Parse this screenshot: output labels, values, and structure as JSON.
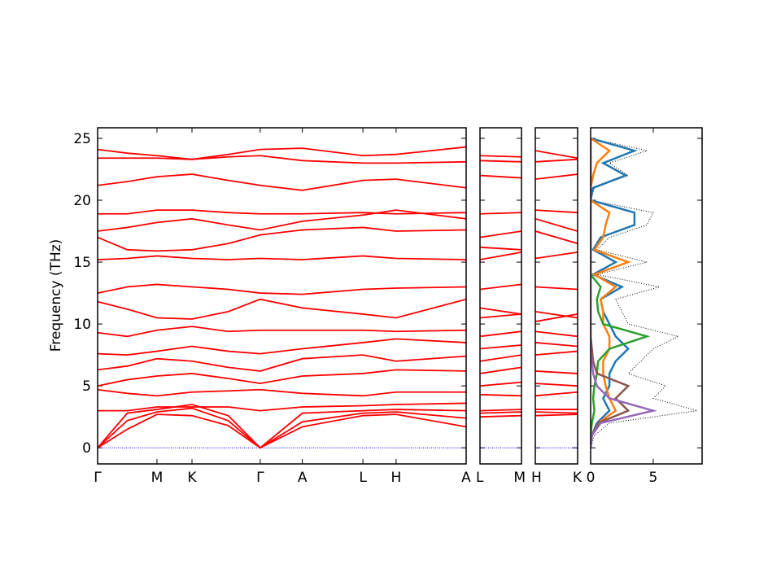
{
  "chart_data": [
    {
      "type": "line",
      "ylabel": "Frequency (THz)",
      "color": "#ff0000",
      "x": [
        0,
        0.5,
        1,
        1.59,
        2.2,
        2.74,
        3.45,
        4.47,
        5.03,
        6.21
      ],
      "xlim": [
        0,
        6.21
      ],
      "xticks": [
        {
          "value": 0,
          "label": "Γ"
        },
        {
          "value": 1,
          "label": "M"
        },
        {
          "value": 1.59,
          "label": "K"
        },
        {
          "value": 2.74,
          "label": "Γ"
        },
        {
          "value": 3.45,
          "label": "A"
        },
        {
          "value": 4.47,
          "label": "L"
        },
        {
          "value": 5.03,
          "label": "H"
        },
        {
          "value": 6.21,
          "label": "A"
        }
      ],
      "ylim": [
        -1.3,
        25.85
      ],
      "yticks": [
        0,
        5,
        10,
        15,
        20,
        25
      ],
      "hline": {
        "value": 0,
        "color": "#0000ff"
      },
      "series": [
        {
          "values": [
            0,
            1.5,
            2.7,
            2.6,
            1.8,
            0,
            1.7,
            2.6,
            2.7,
            1.7
          ]
        },
        {
          "values": [
            0,
            2.2,
            2.9,
            3.2,
            2.2,
            0,
            2.1,
            2.8,
            2.9,
            2.4
          ]
        },
        {
          "values": [
            0,
            2.8,
            3.1,
            3.5,
            2.6,
            0,
            2.8,
            3.0,
            3.1,
            3.0
          ]
        },
        {
          "values": [
            3.0,
            3.0,
            3.3,
            3.3,
            3.3,
            3.0,
            3.3,
            3.4,
            3.5,
            3.6
          ]
        },
        {
          "values": [
            4.7,
            4.4,
            4.2,
            4.5,
            4.6,
            4.7,
            4.4,
            4.2,
            4.5,
            4.5
          ]
        },
        {
          "values": [
            5.0,
            5.5,
            5.8,
            6.0,
            5.6,
            5.2,
            5.8,
            6.0,
            6.3,
            6.2
          ]
        },
        {
          "values": [
            6.3,
            6.6,
            7.2,
            7.0,
            6.5,
            6.2,
            7.2,
            7.5,
            7.0,
            7.4
          ]
        },
        {
          "values": [
            7.6,
            7.5,
            7.8,
            8.2,
            7.8,
            7.6,
            8.0,
            8.5,
            8.8,
            8.5
          ]
        },
        {
          "values": [
            9.3,
            9.0,
            9.5,
            9.8,
            9.4,
            9.5,
            9.5,
            9.5,
            9.4,
            9.5
          ]
        },
        {
          "values": [
            11.8,
            11.2,
            10.5,
            10.4,
            11.0,
            12.0,
            11.3,
            10.8,
            10.5,
            12.0
          ]
        },
        {
          "values": [
            12.5,
            13.0,
            13.2,
            13.0,
            12.8,
            12.5,
            12.4,
            12.8,
            12.9,
            13.0
          ]
        },
        {
          "values": [
            15.2,
            15.3,
            15.5,
            15.3,
            15.2,
            15.3,
            15.2,
            15.5,
            15.3,
            15.2
          ]
        },
        {
          "values": [
            17.0,
            16.0,
            15.9,
            16.0,
            16.5,
            17.2,
            17.6,
            17.8,
            17.5,
            17.6
          ]
        },
        {
          "values": [
            17.5,
            17.8,
            18.2,
            18.5,
            18.0,
            17.6,
            18.3,
            18.8,
            19.2,
            18.5
          ]
        },
        {
          "values": [
            18.9,
            18.9,
            19.2,
            19.2,
            19.0,
            18.9,
            18.9,
            19.0,
            18.9,
            19.0
          ]
        },
        {
          "values": [
            21.2,
            21.5,
            21.9,
            22.1,
            21.6,
            21.2,
            20.8,
            21.6,
            21.7,
            21.0
          ]
        },
        {
          "values": [
            23.4,
            23.4,
            23.4,
            23.3,
            23.5,
            23.6,
            23.2,
            23.0,
            23.0,
            23.1
          ]
        },
        {
          "values": [
            24.1,
            23.8,
            23.6,
            23.3,
            23.7,
            24.1,
            24.2,
            23.6,
            23.7,
            24.3
          ]
        }
      ]
    },
    {
      "type": "line",
      "color": "#ff0000",
      "x": [
        0,
        1
      ],
      "xlim": [
        0,
        1
      ],
      "xticks": [
        {
          "value": 0,
          "label": "L"
        },
        {
          "value": 1,
          "label": "M"
        }
      ],
      "ylim": [
        -1.3,
        25.85
      ],
      "hline": {
        "value": 0,
        "color": "#0000ff"
      },
      "series": [
        {
          "values": [
            2.5,
            2.6
          ]
        },
        {
          "values": [
            2.8,
            2.9
          ]
        },
        {
          "values": [
            3.0,
            3.1
          ]
        },
        {
          "values": [
            4.3,
            4.2
          ]
        },
        {
          "values": [
            5.0,
            5.3
          ]
        },
        {
          "values": [
            6.0,
            6.5
          ]
        },
        {
          "values": [
            7.0,
            7.5
          ]
        },
        {
          "values": [
            8.0,
            8.3
          ]
        },
        {
          "values": [
            9.0,
            9.4
          ]
        },
        {
          "values": [
            10.5,
            10.8
          ]
        },
        {
          "values": [
            11.3,
            10.8
          ]
        },
        {
          "values": [
            12.8,
            13.2
          ]
        },
        {
          "values": [
            15.2,
            15.8
          ]
        },
        {
          "values": [
            16.2,
            16.0
          ]
        },
        {
          "values": [
            17.0,
            17.5
          ]
        },
        {
          "values": [
            18.9,
            19.0
          ]
        },
        {
          "values": [
            22.0,
            21.8
          ]
        },
        {
          "values": [
            23.2,
            23.1
          ]
        },
        {
          "values": [
            23.6,
            23.5
          ]
        }
      ]
    },
    {
      "type": "line",
      "color": "#ff0000",
      "x": [
        0,
        1
      ],
      "xlim": [
        0,
        1
      ],
      "xticks": [
        {
          "value": 0,
          "label": "H"
        },
        {
          "value": 1,
          "label": "K"
        }
      ],
      "ylim": [
        -1.3,
        25.85
      ],
      "hline": {
        "value": 0,
        "color": "#0000ff"
      },
      "series": [
        {
          "values": [
            2.6,
            2.7
          ]
        },
        {
          "values": [
            2.9,
            2.8
          ]
        },
        {
          "values": [
            3.1,
            3.1
          ]
        },
        {
          "values": [
            4.2,
            4.5
          ]
        },
        {
          "values": [
            5.2,
            5.0
          ]
        },
        {
          "values": [
            6.2,
            6.0
          ]
        },
        {
          "values": [
            7.5,
            7.8
          ]
        },
        {
          "values": [
            8.5,
            8.2
          ]
        },
        {
          "values": [
            9.4,
            9.0
          ]
        },
        {
          "values": [
            10.2,
            10.8
          ]
        },
        {
          "values": [
            11.0,
            10.5
          ]
        },
        {
          "values": [
            13.0,
            12.8
          ]
        },
        {
          "values": [
            15.3,
            15.8
          ]
        },
        {
          "values": [
            17.5,
            16.5
          ]
        },
        {
          "values": [
            18.5,
            17.5
          ]
        },
        {
          "values": [
            19.2,
            19.0
          ]
        },
        {
          "values": [
            21.7,
            22.1
          ]
        },
        {
          "values": [
            23.1,
            23.3
          ]
        },
        {
          "values": [
            24.0,
            23.4
          ]
        }
      ]
    },
    {
      "type": "dos",
      "y": [
        0,
        1,
        2,
        3,
        4,
        5,
        6,
        7,
        8,
        9,
        10,
        11,
        12,
        13,
        14,
        15,
        16,
        17,
        18,
        19,
        20,
        21,
        22,
        23,
        24,
        25
      ],
      "xlim": [
        0,
        8.9
      ],
      "xticks": [
        0,
        5
      ],
      "ylim": [
        -1.3,
        25.85
      ],
      "series": [
        {
          "color": "#000000",
          "linestyle": "dotted",
          "values": [
            0,
            0.3,
            1.5,
            8.5,
            5,
            6,
            3,
            4,
            5,
            7,
            3,
            2.5,
            2,
            5.5,
            0.5,
            4.5,
            0.5,
            1.5,
            4.5,
            5,
            0,
            0.3,
            3,
            1.5,
            4.5,
            0
          ]
        },
        {
          "color": "#1f77b4",
          "values": [
            0,
            0.1,
            0.5,
            1.5,
            1,
            1.5,
            1.5,
            2,
            3,
            2,
            1.5,
            1,
            0.8,
            2.5,
            0.2,
            2,
            0.2,
            0.8,
            3.5,
            3.5,
            0,
            0.2,
            2.8,
            1,
            3.5,
            0
          ]
        },
        {
          "color": "#ff7f0e",
          "values": [
            0,
            0.1,
            0.6,
            2,
            1.5,
            1.2,
            1,
            1,
            1.5,
            1.5,
            1,
            1,
            0.8,
            2,
            0.3,
            3,
            0.3,
            1,
            1.2,
            1.5,
            0,
            0,
            0.2,
            0.5,
            1.5,
            0
          ]
        },
        {
          "color": "#2ca02c",
          "values": [
            0,
            0,
            0.1,
            0.3,
            0.2,
            0.3,
            0.5,
            0.6,
            1.5,
            4.5,
            1,
            0.6,
            0.5,
            0.8,
            0,
            0,
            0,
            0,
            0,
            0,
            0,
            0,
            0,
            0,
            0,
            0
          ]
        },
        {
          "color": "#8c564b",
          "values": [
            0,
            0.1,
            0.6,
            3,
            2,
            3,
            0.5,
            0.2,
            0.1,
            0,
            0,
            0,
            0,
            0,
            0,
            0,
            0,
            0,
            0,
            0,
            0,
            0,
            0,
            0,
            0,
            0
          ]
        },
        {
          "color": "#9467bd",
          "values": [
            0,
            0.1,
            0.8,
            5,
            1.5,
            0.5,
            0.2,
            0.1,
            0,
            0,
            0,
            0,
            0,
            0,
            0,
            0,
            0,
            0,
            0,
            0,
            0,
            0,
            0,
            0,
            0,
            0
          ]
        }
      ]
    }
  ]
}
